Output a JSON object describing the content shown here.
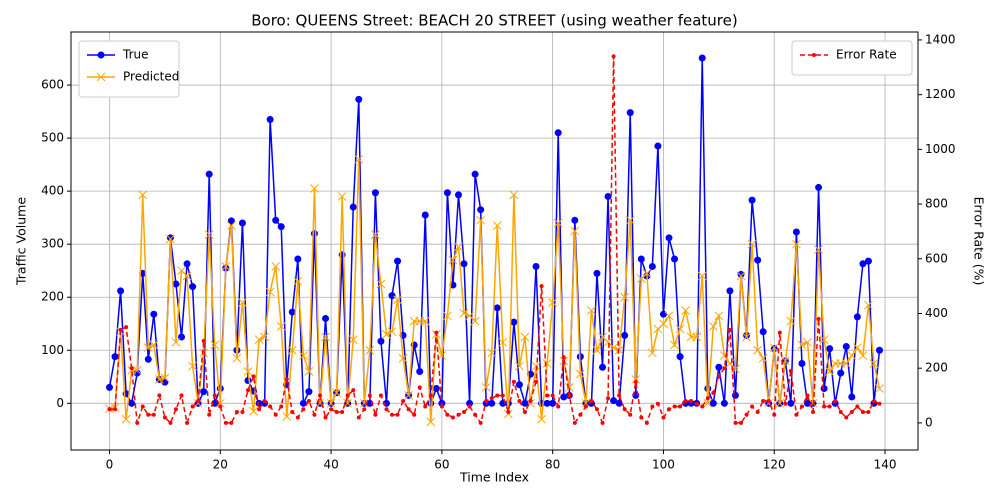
{
  "chart_data": {
    "type": "line",
    "title": "Boro: QUEENS Street: BEACH 20 STREET (using weather feature)",
    "x_label": "Time Index",
    "y_label": "Traffic Volume",
    "y2_label": "Error Rate (%)",
    "x": [
      0,
      1,
      2,
      3,
      4,
      5,
      6,
      7,
      8,
      9,
      10,
      11,
      12,
      13,
      14,
      15,
      16,
      17,
      18,
      19,
      20,
      21,
      22,
      23,
      24,
      25,
      26,
      27,
      28,
      29,
      30,
      31,
      32,
      33,
      34,
      35,
      36,
      37,
      38,
      39,
      40,
      41,
      42,
      43,
      44,
      45,
      46,
      47,
      48,
      49,
      50,
      51,
      52,
      53,
      54,
      55,
      56,
      57,
      58,
      59,
      60,
      61,
      62,
      63,
      64,
      65,
      66,
      67,
      68,
      69,
      70,
      71,
      72,
      73,
      74,
      75,
      76,
      77,
      78,
      79,
      80,
      81,
      82,
      83,
      84,
      85,
      86,
      87,
      88,
      89,
      90,
      91,
      92,
      93,
      94,
      95,
      96,
      97,
      98,
      99,
      100,
      101,
      102,
      103,
      104,
      105,
      106,
      107,
      108,
      109,
      110,
      111,
      112,
      113,
      114,
      115,
      116,
      117,
      118,
      119,
      120,
      121,
      122,
      123,
      124,
      125,
      126,
      127,
      128,
      129,
      130,
      131,
      132,
      133,
      134,
      135,
      136,
      137,
      138,
      139
    ],
    "series": [
      {
        "name": "True",
        "color": "#0000ff",
        "marker": "circle",
        "linestyle": "solid",
        "values": [
          30,
          88,
          212,
          18,
          0,
          57,
          245,
          83,
          168,
          45,
          40,
          312,
          225,
          125,
          263,
          220,
          0,
          22,
          432,
          0,
          28,
          255,
          344,
          100,
          340,
          43,
          23,
          0,
          0,
          535,
          345,
          333,
          35,
          172,
          272,
          0,
          22,
          320,
          0,
          160,
          0,
          20,
          280,
          0,
          370,
          573,
          0,
          0,
          397,
          117,
          0,
          203,
          268,
          128,
          15,
          110,
          60,
          355,
          0,
          28,
          0,
          397,
          223,
          393,
          263,
          0,
          432,
          365,
          0,
          0,
          180,
          0,
          0,
          153,
          35,
          0,
          55,
          258,
          0,
          0,
          0,
          510,
          12,
          15,
          345,
          88,
          0,
          0,
          245,
          68,
          390,
          5,
          0,
          128,
          548,
          15,
          272,
          240,
          258,
          485,
          168,
          312,
          272,
          88,
          0,
          0,
          0,
          651,
          28,
          0,
          68,
          0,
          212,
          15,
          243,
          128,
          383,
          270,
          135,
          0,
          103,
          0,
          80,
          0,
          323,
          75,
          0,
          0,
          407,
          28,
          103,
          0,
          57,
          107,
          12,
          163,
          263,
          268,
          0,
          100
        ]
      },
      {
        "name": "Predicted",
        "color": "#ffa500",
        "marker": "x",
        "linestyle": "solid",
        "values": [
          -10,
          -8,
          135,
          -30,
          62,
          62,
          393,
          105,
          110,
          45,
          48,
          310,
          115,
          250,
          240,
          70,
          0,
          95,
          318,
          110,
          0,
          258,
          335,
          85,
          190,
          60,
          -15,
          120,
          125,
          210,
          258,
          145,
          -25,
          100,
          230,
          90,
          60,
          405,
          0,
          125,
          0,
          20,
          390,
          0,
          120,
          460,
          0,
          100,
          318,
          225,
          130,
          135,
          195,
          85,
          15,
          155,
          155,
          155,
          -35,
          130,
          90,
          165,
          270,
          295,
          170,
          165,
          155,
          345,
          30,
          95,
          335,
          115,
          -20,
          393,
          70,
          125,
          0,
          70,
          -30,
          75,
          190,
          340,
          80,
          30,
          325,
          55,
          0,
          175,
          100,
          125,
          115,
          105,
          100,
          200,
          345,
          45,
          235,
          245,
          95,
          140,
          150,
          165,
          110,
          140,
          175,
          125,
          125,
          240,
          0,
          145,
          165,
          90,
          75,
          65,
          240,
          125,
          300,
          100,
          85,
          0,
          105,
          0,
          80,
          155,
          300,
          110,
          115,
          0,
          290,
          120,
          60,
          75,
          75,
          75,
          90,
          105,
          90,
          185,
          75,
          28
        ]
      },
      {
        "name": "Error Rate",
        "color": "#ff0000",
        "marker": "dot",
        "linestyle": "dashed",
        "axis": "y2",
        "values": [
          50,
          50,
          340,
          350,
          200,
          0,
          60,
          30,
          30,
          100,
          20,
          0,
          50,
          100,
          0,
          60,
          80,
          300,
          30,
          100,
          60,
          0,
          0,
          40,
          40,
          120,
          170,
          50,
          80,
          60,
          30,
          60,
          160,
          40,
          20,
          50,
          80,
          30,
          100,
          20,
          50,
          40,
          40,
          100,
          120,
          20,
          50,
          100,
          30,
          100,
          50,
          30,
          30,
          80,
          50,
          30,
          130,
          60,
          100,
          330,
          60,
          30,
          20,
          30,
          40,
          60,
          30,
          0,
          80,
          90,
          100,
          100,
          40,
          150,
          80,
          40,
          80,
          150,
          500,
          100,
          100,
          60,
          240,
          100,
          0,
          30,
          60,
          80,
          50,
          0,
          90,
          1340,
          100,
          50,
          30,
          150,
          20,
          0,
          60,
          70,
          20,
          50,
          60,
          60,
          80,
          80,
          70,
          60,
          90,
          110,
          170,
          200,
          340,
          0,
          0,
          30,
          60,
          40,
          80,
          80,
          30,
          330,
          70,
          190,
          30,
          60,
          100,
          40,
          380,
          60,
          60,
          80,
          40,
          20,
          40,
          60,
          40,
          40,
          80,
          70
        ]
      }
    ],
    "xlim": [
      -6.95,
      145.95
    ],
    "xticks": [
      0,
      20,
      40,
      60,
      80,
      100,
      120,
      140
    ],
    "ylim": [
      -88,
      700
    ],
    "yticks": [
      0,
      100,
      200,
      300,
      400,
      500,
      600
    ],
    "y2lim": [
      -99,
      1429
    ],
    "y2ticks": [
      0,
      200,
      400,
      600,
      800,
      1000,
      1200,
      1400
    ],
    "grid": true,
    "legend": "upper left",
    "legend2": "upper right"
  }
}
